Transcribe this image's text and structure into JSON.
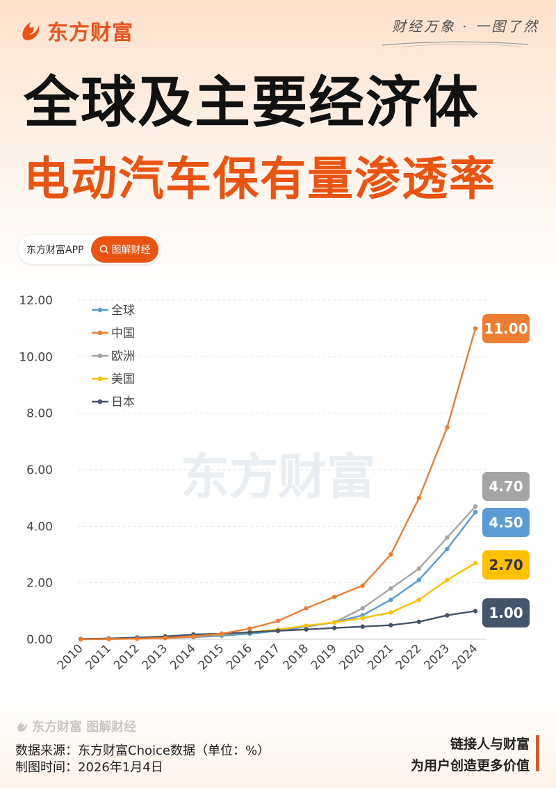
{
  "header": {
    "brand": "东方财富",
    "slogan": "财经万象 · 一图了然",
    "title_line1": "全球及主要经济体",
    "title_line2": "电动汽车保有量渗透率",
    "app_name": "东方财富APP",
    "search_label": "图解财经"
  },
  "watermark": "东方财富",
  "footer": {
    "brand_line": "东方财富 图解财经",
    "source": "数据来源：东方财富Choice数据（单位：%）",
    "date": "制图时间：2026年1月4日",
    "tagline1": "链接人与财富",
    "tagline2": "为用户创造更多价值"
  },
  "colors": {
    "accent": "#ea5412",
    "global": "#5b9bd5",
    "china": "#ed7d31",
    "europe": "#a5a5a5",
    "usa": "#ffc000",
    "japan": "#44546a"
  },
  "chart_data": {
    "type": "line",
    "title": "",
    "xlabel": "",
    "ylabel": "",
    "ylim": [
      0,
      12
    ],
    "yticks": [
      "0.00",
      "2.00",
      "4.00",
      "6.00",
      "8.00",
      "10.00",
      "12.00"
    ],
    "grid": true,
    "legend": "top-left",
    "categories": [
      "2010",
      "2011",
      "2012",
      "2013",
      "2014",
      "2015",
      "2016",
      "2017",
      "2018",
      "2019",
      "2020",
      "2021",
      "2022",
      "2023",
      "2024"
    ],
    "series": [
      {
        "name": "全球",
        "color": "#5b9bd5",
        "values": [
          0.01,
          0.02,
          0.04,
          0.07,
          0.1,
          0.14,
          0.2,
          0.3,
          0.45,
          0.6,
          0.85,
          1.4,
          2.1,
          3.2,
          4.5
        ],
        "end_label": "4.50"
      },
      {
        "name": "中国",
        "color": "#ed7d31",
        "values": [
          0.0,
          0.01,
          0.02,
          0.05,
          0.1,
          0.2,
          0.38,
          0.65,
          1.1,
          1.5,
          1.9,
          3.0,
          5.0,
          7.5,
          11.0
        ],
        "end_label": "11.00"
      },
      {
        "name": "欧洲",
        "color": "#a5a5a5",
        "values": [
          0.0,
          0.01,
          0.02,
          0.04,
          0.07,
          0.12,
          0.2,
          0.3,
          0.45,
          0.6,
          1.1,
          1.8,
          2.5,
          3.6,
          4.7
        ],
        "end_label": "4.70"
      },
      {
        "name": "美国",
        "color": "#ffc000",
        "values": [
          0.0,
          0.01,
          0.02,
          0.04,
          0.12,
          0.18,
          0.25,
          0.35,
          0.48,
          0.6,
          0.75,
          0.95,
          1.4,
          2.1,
          2.7
        ],
        "end_label": "2.70"
      },
      {
        "name": "日本",
        "color": "#44546a",
        "values": [
          0.01,
          0.03,
          0.06,
          0.1,
          0.17,
          0.2,
          0.25,
          0.3,
          0.35,
          0.4,
          0.45,
          0.5,
          0.62,
          0.85,
          1.0
        ],
        "end_label": "1.00"
      }
    ]
  }
}
